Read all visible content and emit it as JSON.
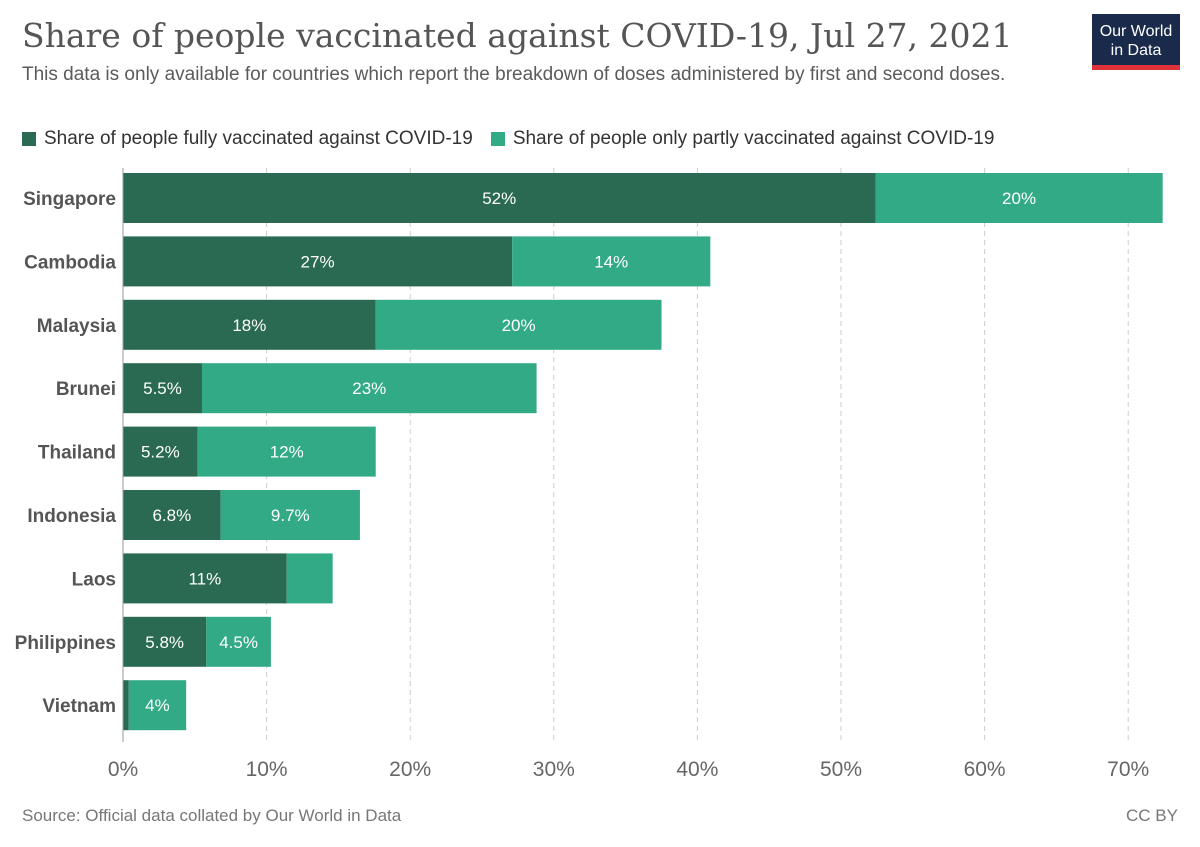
{
  "header": {
    "title": "Share of people vaccinated against COVID-19, Jul 27, 2021",
    "subtitle": "This data is only available for countries which report the breakdown of doses administered by first and second doses."
  },
  "logo": {
    "line1": "Our World",
    "line2": "in Data",
    "bg_color": "#1a2a4a",
    "accent_color": "#e0323a"
  },
  "colors": {
    "fully": "#2a6a52",
    "partly": "#32aa86",
    "grid": "#cccccc"
  },
  "footer": {
    "source": "Source: Official data collated by Our World in Data",
    "license": "CC BY"
  },
  "chart_data": {
    "type": "bar",
    "orientation": "horizontal",
    "stacked": true,
    "title": "Share of people vaccinated against COVID-19, Jul 27, 2021",
    "categories": [
      "Singapore",
      "Cambodia",
      "Malaysia",
      "Brunei",
      "Thailand",
      "Indonesia",
      "Laos",
      "Philippines",
      "Vietnam"
    ],
    "series": [
      {
        "name": "Share of people fully vaccinated against COVID-19",
        "values": [
          52.4,
          27.1,
          17.6,
          5.5,
          5.2,
          6.8,
          11.4,
          5.8,
          0.4
        ],
        "labels": [
          "52%",
          "27%",
          "18%",
          "5.5%",
          "5.2%",
          "6.8%",
          "11%",
          "5.8%",
          ""
        ]
      },
      {
        "name": "Share of people only partly vaccinated against COVID-19",
        "values": [
          20.0,
          13.8,
          19.9,
          23.3,
          12.4,
          9.7,
          3.2,
          4.5,
          4.0
        ],
        "labels": [
          "20%",
          "14%",
          "20%",
          "23%",
          "12%",
          "9.7%",
          "",
          "4.5%",
          "4%"
        ]
      }
    ],
    "xlim": [
      0,
      72
    ],
    "xticks": [
      0,
      10,
      20,
      30,
      40,
      50,
      60,
      70
    ],
    "xtick_labels": [
      "0%",
      "10%",
      "20%",
      "30%",
      "40%",
      "50%",
      "60%",
      "70%"
    ],
    "grid": true,
    "legend_position": "top-left"
  }
}
